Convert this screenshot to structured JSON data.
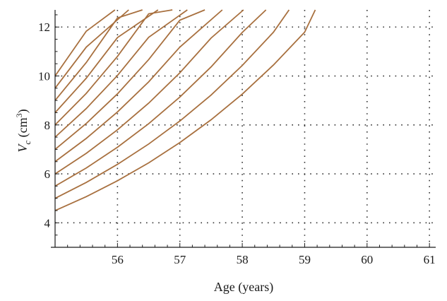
{
  "chart_data": {
    "type": "line",
    "title": "",
    "xlabel": "Age (years)",
    "ylabel": {
      "symbol": "V",
      "subscript": "c",
      "unit_open": " (cm",
      "unit_power": "3",
      "unit_close": ")"
    },
    "xlim": [
      55,
      61.1
    ],
    "ylim": [
      3,
      12.7
    ],
    "x_ticks": [
      56,
      57,
      58,
      59,
      60,
      61
    ],
    "y_ticks": [
      4,
      6,
      8,
      10,
      12
    ],
    "x_tick_labels": [
      "56",
      "57",
      "58",
      "59",
      "60",
      "61"
    ],
    "y_tick_labels": [
      "4",
      "6",
      "8",
      "10",
      "12"
    ],
    "grid": true,
    "line_color": "#a8703f",
    "series": [
      {
        "points": [
          [
            55,
            4.5
          ],
          [
            55.5,
            5.07
          ],
          [
            56,
            5.72
          ],
          [
            56.5,
            6.45
          ],
          [
            57,
            7.28
          ],
          [
            57.5,
            8.21
          ],
          [
            58,
            9.26
          ],
          [
            58.5,
            10.45
          ],
          [
            59,
            11.79
          ],
          [
            59.17,
            12.7
          ]
        ]
      },
      {
        "points": [
          [
            55,
            5.0
          ],
          [
            55.5,
            5.65
          ],
          [
            56,
            6.39
          ],
          [
            56.5,
            7.22
          ],
          [
            57,
            8.16
          ],
          [
            57.5,
            9.22
          ],
          [
            58,
            10.43
          ],
          [
            58.5,
            11.79
          ],
          [
            58.75,
            12.7
          ]
        ]
      },
      {
        "points": [
          [
            55,
            5.5
          ],
          [
            55.5,
            6.24
          ],
          [
            56,
            7.09
          ],
          [
            56.5,
            8.05
          ],
          [
            57,
            9.14
          ],
          [
            57.5,
            10.37
          ],
          [
            58,
            11.78
          ],
          [
            58.38,
            12.7
          ]
        ]
      },
      {
        "points": [
          [
            55,
            6.0
          ],
          [
            55.5,
            6.84
          ],
          [
            56,
            7.8
          ],
          [
            56.5,
            8.89
          ],
          [
            57,
            10.13
          ],
          [
            57.5,
            11.55
          ],
          [
            58.02,
            12.7
          ]
        ]
      },
      {
        "points": [
          [
            55,
            6.5
          ],
          [
            55.5,
            7.45
          ],
          [
            56,
            8.53
          ],
          [
            56.5,
            9.76
          ],
          [
            57,
            11.18
          ],
          [
            57.68,
            12.7
          ]
        ]
      },
      {
        "points": [
          [
            55,
            7.0
          ],
          [
            55.5,
            8.06
          ],
          [
            56,
            9.27
          ],
          [
            56.5,
            10.67
          ],
          [
            57,
            12.28
          ],
          [
            57.4,
            12.7
          ]
        ]
      },
      {
        "points": [
          [
            55,
            7.5
          ],
          [
            55.5,
            8.67
          ],
          [
            56,
            10.02
          ],
          [
            56.5,
            11.58
          ],
          [
            57.12,
            12.7
          ]
        ]
      },
      {
        "points": [
          [
            55,
            8.0
          ],
          [
            55.5,
            9.29
          ],
          [
            56,
            10.8
          ],
          [
            56.5,
            12.54
          ],
          [
            56.88,
            12.7
          ]
        ]
      },
      {
        "points": [
          [
            55,
            8.5
          ],
          [
            55.5,
            9.91
          ],
          [
            56,
            11.57
          ],
          [
            56.65,
            12.7
          ]
        ]
      },
      {
        "points": [
          [
            55,
            9.0
          ],
          [
            55.5,
            10.55
          ],
          [
            56,
            12.37
          ],
          [
            56.4,
            12.7
          ]
        ]
      },
      {
        "points": [
          [
            55,
            9.5
          ],
          [
            55.5,
            11.18
          ],
          [
            56.18,
            12.7
          ]
        ]
      },
      {
        "points": [
          [
            55,
            10.0
          ],
          [
            55.5,
            11.83
          ],
          [
            55.96,
            12.7
          ]
        ]
      }
    ]
  }
}
